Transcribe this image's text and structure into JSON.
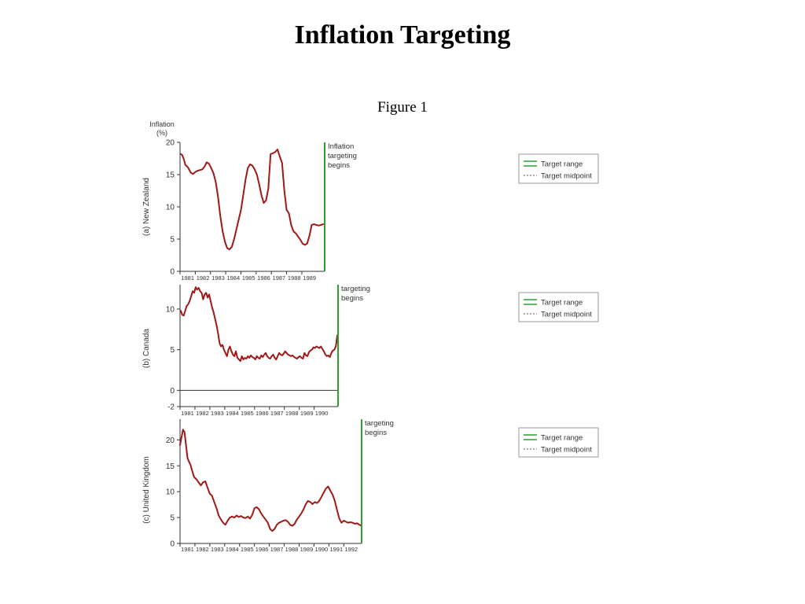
{
  "slide": {
    "title": "Inflation Targeting",
    "caption": "Figure 1"
  },
  "chart_data": [
    {
      "type": "line",
      "ylabel": "(a) New Zealand",
      "yunit": "Inflation\n(%)",
      "ylim": [
        0,
        20
      ],
      "yticks": [
        0,
        5,
        10,
        15,
        20
      ],
      "xlim": [
        1980.5,
        1990.0
      ],
      "xticks": [
        "1981",
        "1982",
        "1983",
        "1984",
        "1985",
        "1986",
        "1987",
        "1988",
        "1989"
      ],
      "grid": false,
      "colors": {
        "series": "#a01818",
        "target": "#2fa02f"
      },
      "series": [
        {
          "x": [
            1980.55,
            1980.65,
            1980.75,
            1980.85,
            1980.95,
            1981.05,
            1981.2,
            1981.35,
            1981.5,
            1981.65,
            1981.8,
            1981.95,
            1982.1,
            1982.25,
            1982.4,
            1982.55,
            1982.7,
            1982.85,
            1983.0,
            1983.15,
            1983.3,
            1983.45,
            1983.6,
            1983.75,
            1983.9,
            1984.05,
            1984.2,
            1984.35,
            1984.5,
            1984.65,
            1984.8,
            1984.95,
            1985.1,
            1985.25,
            1985.4,
            1985.55,
            1985.7,
            1985.85,
            1986.0,
            1986.15,
            1986.3,
            1986.45,
            1986.6,
            1986.75,
            1986.9,
            1987.05,
            1987.2,
            1987.35,
            1987.5,
            1987.65,
            1987.8,
            1987.95,
            1988.1,
            1988.25,
            1988.4,
            1988.55,
            1988.7,
            1988.85,
            1989.0,
            1989.15,
            1989.3,
            1989.45,
            1989.6,
            1989.75,
            1989.9
          ],
          "values": [
            18.2,
            18.0,
            17.4,
            16.5,
            16.3,
            16.0,
            15.3,
            15.1,
            15.4,
            15.6,
            15.7,
            15.8,
            16.2,
            16.9,
            16.7,
            16.0,
            15.2,
            13.8,
            11.5,
            8.5,
            6.2,
            4.6,
            3.6,
            3.4,
            3.8,
            5.0,
            6.5,
            8.0,
            9.5,
            11.8,
            14.2,
            16.0,
            16.6,
            16.4,
            15.8,
            15.0,
            13.5,
            11.8,
            10.6,
            11.0,
            12.8,
            18.2,
            18.3,
            18.5,
            18.9,
            17.8,
            16.8,
            12.5,
            9.5,
            9.0,
            7.2,
            6.2,
            5.9,
            5.4,
            4.9,
            4.3,
            4.1,
            4.3,
            5.5,
            7.2,
            7.3,
            7.2,
            7.1,
            7.2,
            7.3
          ]
        }
      ],
      "annotation": "Inflation\ntargeting\nbegins",
      "targeting_begins": 1990.0,
      "legend": {
        "entries": [
          "Target range",
          "Target midpoint"
        ],
        "placement": "right"
      }
    },
    {
      "type": "line",
      "ylabel": "(b) Canada",
      "ylim": [
        -2,
        13
      ],
      "yticks": [
        -2,
        0,
        5,
        10
      ],
      "xlim": [
        1980.5,
        1991.1
      ],
      "xticks": [
        "1981",
        "1982",
        "1983",
        "1984",
        "1985",
        "1986",
        "1987",
        "1988",
        "1989",
        "1990"
      ],
      "grid": false,
      "zero_line": true,
      "colors": {
        "series": "#a01818",
        "target": "#2fa02f"
      },
      "series": [
        {
          "x": [
            1980.55,
            1980.65,
            1980.75,
            1980.85,
            1980.95,
            1981.05,
            1981.15,
            1981.25,
            1981.35,
            1981.45,
            1981.55,
            1981.65,
            1981.75,
            1981.85,
            1981.95,
            1982.05,
            1982.15,
            1982.25,
            1982.35,
            1982.45,
            1982.55,
            1982.65,
            1982.75,
            1982.85,
            1982.95,
            1983.05,
            1983.15,
            1983.25,
            1983.35,
            1983.45,
            1983.55,
            1983.65,
            1983.75,
            1983.85,
            1983.95,
            1984.05,
            1984.15,
            1984.25,
            1984.35,
            1984.45,
            1984.55,
            1984.65,
            1984.75,
            1984.85,
            1984.95,
            1985.05,
            1985.15,
            1985.25,
            1985.35,
            1985.45,
            1985.55,
            1985.65,
            1985.75,
            1985.85,
            1985.95,
            1986.05,
            1986.15,
            1986.25,
            1986.35,
            1986.45,
            1986.55,
            1986.65,
            1986.75,
            1986.85,
            1986.95,
            1987.05,
            1987.15,
            1987.25,
            1987.35,
            1987.45,
            1987.55,
            1987.65,
            1987.75,
            1987.85,
            1987.95,
            1988.05,
            1988.15,
            1988.25,
            1988.35,
            1988.45,
            1988.55,
            1988.65,
            1988.75,
            1988.85,
            1988.95,
            1989.05,
            1989.15,
            1989.25,
            1989.35,
            1989.45,
            1989.55,
            1989.65,
            1989.75,
            1989.85,
            1989.95,
            1990.05,
            1990.15,
            1990.25,
            1990.35,
            1990.45,
            1990.55,
            1990.65,
            1990.75,
            1990.85,
            1990.95,
            1991.05
          ],
          "values": [
            9.8,
            9.3,
            9.2,
            9.8,
            10.4,
            10.6,
            11.0,
            11.6,
            12.2,
            12.0,
            12.7,
            12.4,
            12.6,
            12.2,
            12.0,
            11.2,
            11.8,
            12.0,
            11.4,
            11.8,
            11.0,
            10.2,
            9.6,
            8.8,
            8.0,
            7.0,
            5.8,
            5.4,
            5.6,
            5.0,
            4.6,
            4.2,
            5.0,
            5.4,
            4.8,
            4.4,
            4.2,
            4.8,
            4.0,
            3.8,
            3.6,
            4.2,
            3.8,
            4.0,
            3.9,
            4.2,
            4.0,
            4.3,
            4.1,
            4.0,
            3.8,
            4.2,
            4.0,
            3.9,
            4.3,
            4.1,
            4.4,
            4.6,
            4.2,
            4.0,
            3.9,
            4.2,
            4.4,
            4.0,
            3.8,
            4.2,
            4.6,
            4.4,
            4.3,
            4.5,
            4.8,
            4.6,
            4.4,
            4.3,
            4.2,
            4.3,
            4.1,
            4.0,
            3.9,
            4.1,
            4.2,
            4.0,
            3.9,
            4.6,
            4.3,
            4.2,
            4.7,
            4.9,
            5.0,
            5.3,
            5.2,
            5.4,
            5.3,
            5.2,
            5.4,
            5.1,
            4.8,
            4.4,
            4.2,
            4.3,
            4.1,
            4.6,
            4.9,
            5.0,
            5.4,
            6.8
          ]
        }
      ],
      "annotation": "targeting\nbegins",
      "targeting_begins": 1991.1,
      "legend": {
        "entries": [
          "Target range",
          "Target midpoint"
        ],
        "placement": "right"
      }
    },
    {
      "type": "line",
      "ylabel": "(c) United Kingdom",
      "ylim": [
        0,
        24
      ],
      "yticks": [
        0,
        5,
        10,
        15,
        20
      ],
      "xlim": [
        1980.5,
        1992.7
      ],
      "xticks": [
        "1981",
        "1982",
        "1983",
        "1984",
        "1985",
        "1986",
        "1987",
        "1988",
        "1989",
        "1990",
        "1991",
        "1992"
      ],
      "grid": false,
      "colors": {
        "series": "#a01818",
        "target": "#2fa02f"
      },
      "series": [
        {
          "x": [
            1980.5,
            1980.6,
            1980.7,
            1980.8,
            1980.9,
            1981.0,
            1981.1,
            1981.2,
            1981.3,
            1981.45,
            1981.6,
            1981.75,
            1981.9,
            1982.05,
            1982.2,
            1982.35,
            1982.5,
            1982.65,
            1982.8,
            1982.95,
            1983.1,
            1983.25,
            1983.4,
            1983.55,
            1983.7,
            1983.85,
            1984.0,
            1984.15,
            1984.3,
            1984.45,
            1984.6,
            1984.75,
            1984.9,
            1985.05,
            1985.2,
            1985.35,
            1985.5,
            1985.65,
            1985.8,
            1985.95,
            1986.1,
            1986.25,
            1986.4,
            1986.55,
            1986.7,
            1986.85,
            1987.0,
            1987.15,
            1987.3,
            1987.45,
            1987.6,
            1987.75,
            1987.9,
            1988.05,
            1988.2,
            1988.35,
            1988.5,
            1988.65,
            1988.8,
            1988.95,
            1989.1,
            1989.25,
            1989.4,
            1989.55,
            1989.7,
            1989.85,
            1990.0,
            1990.15,
            1990.3,
            1990.45,
            1990.6,
            1990.75,
            1990.9,
            1991.05,
            1991.2,
            1991.35,
            1991.5,
            1991.65,
            1991.8,
            1991.95,
            1992.1,
            1992.25,
            1992.4,
            1992.55,
            1992.7
          ],
          "values": [
            19.0,
            20.5,
            22.0,
            21.5,
            19.0,
            16.5,
            15.8,
            15.2,
            14.2,
            12.8,
            12.4,
            11.8,
            11.2,
            11.8,
            12.0,
            10.8,
            9.6,
            9.2,
            8.0,
            6.8,
            5.4,
            4.6,
            4.0,
            3.6,
            4.4,
            5.0,
            5.2,
            5.0,
            5.4,
            5.1,
            5.3,
            5.0,
            4.9,
            5.2,
            4.8,
            5.5,
            6.8,
            7.0,
            6.6,
            5.8,
            5.2,
            4.6,
            4.0,
            2.8,
            2.4,
            2.8,
            3.6,
            4.0,
            4.2,
            4.4,
            4.5,
            4.2,
            3.6,
            3.4,
            3.8,
            4.6,
            5.2,
            5.8,
            6.6,
            7.6,
            8.2,
            8.0,
            7.6,
            8.0,
            7.8,
            8.2,
            9.0,
            9.8,
            10.6,
            11.0,
            10.2,
            9.4,
            8.2,
            6.4,
            4.8,
            4.0,
            4.4,
            4.2,
            4.0,
            4.1,
            4.0,
            3.8,
            3.9,
            3.6,
            3.4
          ]
        }
      ],
      "annotation": "targeting\nbegins",
      "targeting_begins": 1992.7,
      "legend": {
        "entries": [
          "Target range",
          "Target midpoint"
        ],
        "placement": "right"
      }
    }
  ]
}
